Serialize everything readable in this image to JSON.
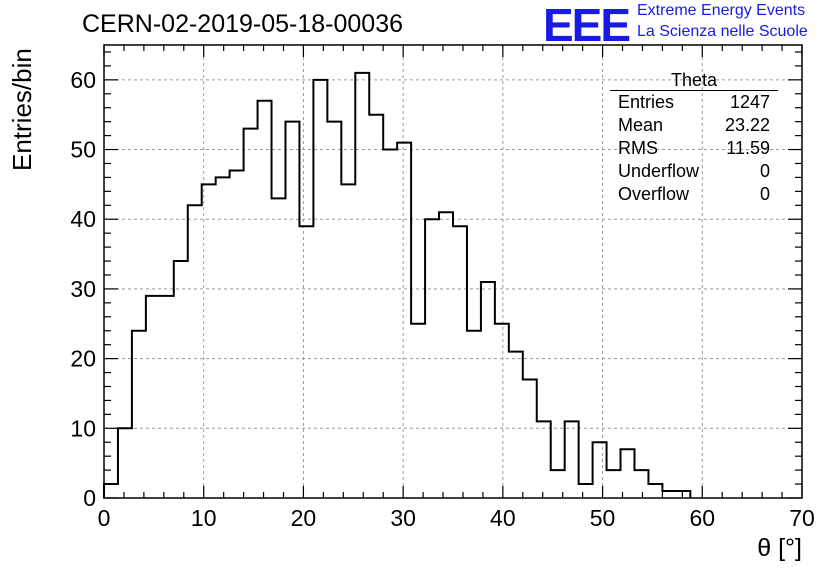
{
  "title": "CERN-02-2019-05-18-00036",
  "logo": {
    "letters": "EEE",
    "line1": "Extreme Energy Events",
    "line2": "La Scienza nelle Scuole",
    "color": "#1a1ae6"
  },
  "stats_box": {
    "title": "Theta",
    "rows": [
      {
        "label": "Entries",
        "value": "1247"
      },
      {
        "label": "Mean",
        "value": "23.22"
      },
      {
        "label": "RMS",
        "value": "11.59"
      },
      {
        "label": "Underflow",
        "value": "0"
      },
      {
        "label": "Overflow",
        "value": "0"
      }
    ]
  },
  "chart_data": {
    "type": "bar",
    "style": "step-histogram",
    "title": "CERN-02-2019-05-18-00036",
    "xlabel": "θ [°]",
    "ylabel": "Entries/bin",
    "xlim": [
      0,
      70
    ],
    "ylim": [
      0,
      65
    ],
    "grid": true,
    "xticks": [
      0,
      10,
      20,
      30,
      40,
      50,
      60,
      70
    ],
    "yticks": [
      0,
      10,
      20,
      30,
      40,
      50,
      60
    ],
    "bin_edges": [
      0,
      1.4,
      2.8,
      4.2,
      5.6,
      7.0,
      8.4,
      9.8,
      11.2,
      12.6,
      14.0,
      15.4,
      16.8,
      18.2,
      19.6,
      21.0,
      22.4,
      23.8,
      25.2,
      26.6,
      28.0,
      29.4,
      30.8,
      32.2,
      33.6,
      35.0,
      36.4,
      37.8,
      39.2,
      40.6,
      42.0,
      43.4,
      44.8,
      46.2,
      47.6,
      49.0,
      50.4,
      51.8,
      53.2,
      54.6,
      56.0,
      57.4,
      58.8
    ],
    "values": [
      2,
      10,
      24,
      29,
      29,
      34,
      42,
      45,
      46,
      47,
      53,
      57,
      43,
      54,
      39,
      60,
      54,
      45,
      61,
      55,
      50,
      51,
      25,
      40,
      41,
      39,
      24,
      31,
      25,
      21,
      17,
      11,
      4,
      11,
      2,
      8,
      4,
      7,
      4,
      2,
      1,
      1
    ]
  }
}
